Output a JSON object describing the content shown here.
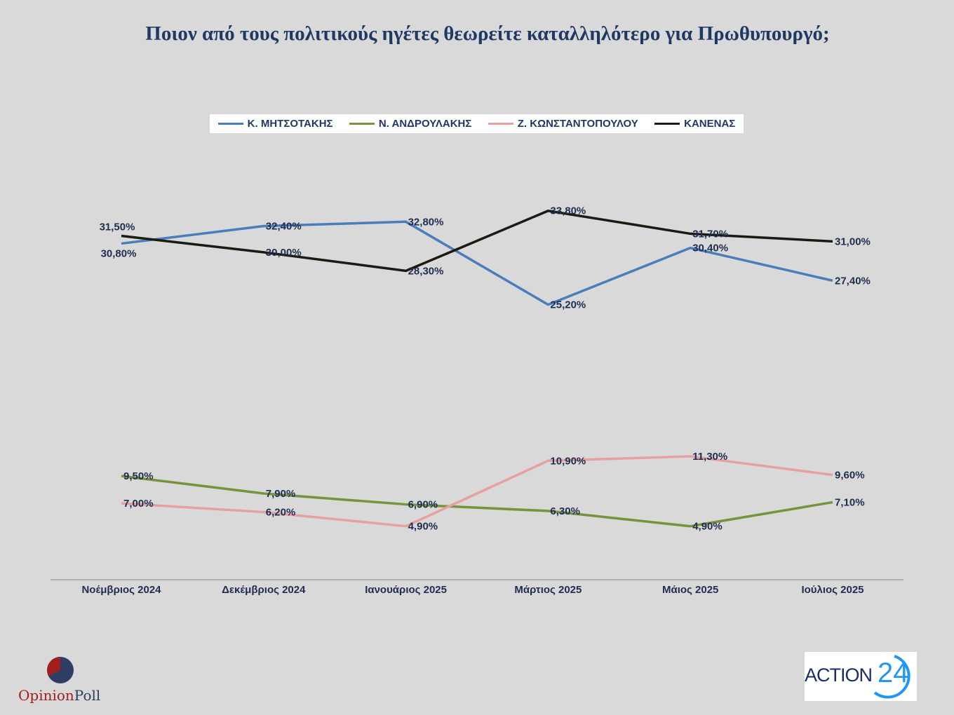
{
  "title": "Ποιον από τους πολιτικούς ηγέτες θεωρείτε καταλληλότερο για Πρωθυπουργό;",
  "logos": {
    "left": "OpinionPoll",
    "left_part1": "Opinion",
    "left_part2": "Poll",
    "right": "ACTION 24",
    "right_word": "ACTION",
    "right_num": "24"
  },
  "chart_data": {
    "type": "line",
    "title": "Ποιον από τους πολιτικούς ηγέτες θεωρείτε καταλληλότερο για Πρωθυπουργό;",
    "categories": [
      "Νοέμβριος 2024",
      "Δεκέμβριος  2024",
      "Ιανουάριος 2025",
      "Μάρτιος 2025",
      "Μάιος 2025",
      "Ιούλιος 2025"
    ],
    "ylim": [
      0,
      40
    ],
    "grid": false,
    "legend_position": "top",
    "series": [
      {
        "name": "Κ. ΜΗΤΣΟΤΑΚΗΣ",
        "color": "#4a7ebb",
        "values": [
          30.8,
          32.4,
          32.8,
          25.2,
          30.4,
          27.4
        ],
        "labels": [
          "30,80%",
          "32,40%",
          "32,80%",
          "25,20%",
          "30,40%",
          "27,40%"
        ],
        "label_pos": [
          "below-left",
          "right",
          "right",
          "right",
          "right",
          "right"
        ]
      },
      {
        "name": "Ν. ΑΝΔΡΟΥΛΑΚΗΣ",
        "color": "#77933c",
        "values": [
          9.5,
          7.9,
          6.9,
          6.3,
          4.9,
          7.1
        ],
        "labels": [
          "9,50%",
          "7,90%",
          "6,90%",
          "6,30%",
          "4,90%",
          "7,10%"
        ],
        "label_pos": [
          "right",
          "right",
          "right",
          "right",
          "right",
          "right"
        ]
      },
      {
        "name": "Ζ. ΚΩΝΣΤΑΝΤΟΠΟΥΛΟΥ",
        "color": "#e6a0a0",
        "values": [
          7.0,
          6.2,
          4.9,
          10.9,
          11.3,
          9.6
        ],
        "labels": [
          "7,00%",
          "6,20%",
          "4,90%",
          "10,90%",
          "11,30%",
          "9,60%"
        ],
        "label_pos": [
          "right",
          "right",
          "right",
          "right",
          "right",
          "right"
        ]
      },
      {
        "name": "ΚΑΝΕΝΑΣ",
        "color": "#1b1b12",
        "values": [
          31.5,
          30.0,
          28.3,
          33.8,
          31.7,
          31.0
        ],
        "labels": [
          "31,50%",
          "30,00%",
          "28,30%",
          "33,80%",
          "31,70%",
          "31,00%"
        ],
        "label_pos": [
          "above-left",
          "right",
          "right",
          "right",
          "right",
          "right"
        ]
      }
    ]
  }
}
